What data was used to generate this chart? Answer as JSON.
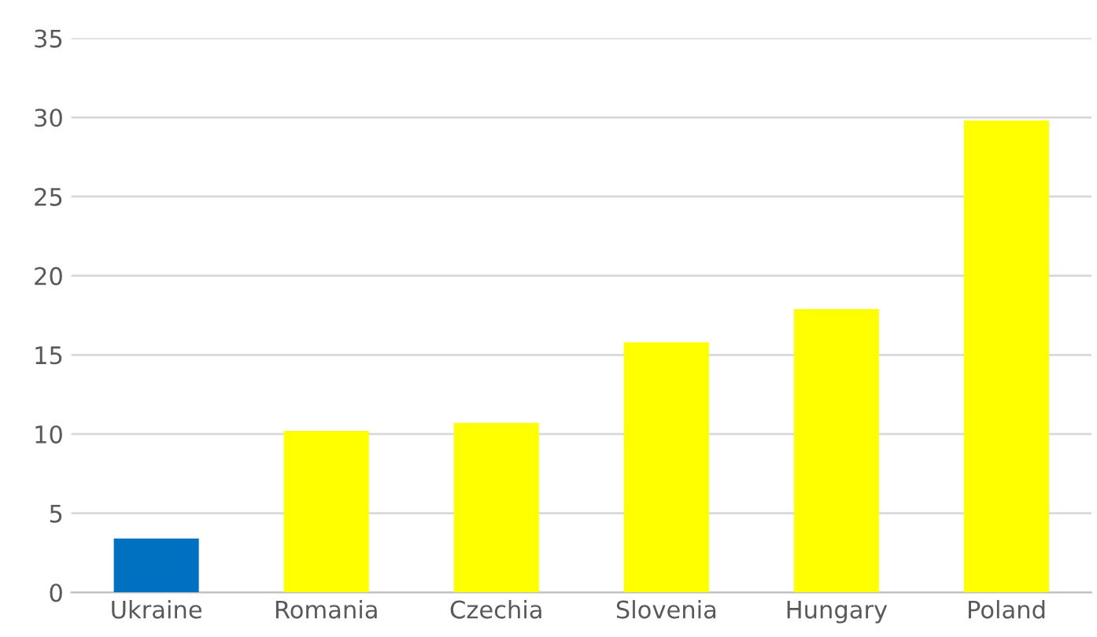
{
  "chart_data": {
    "type": "bar",
    "categories": [
      "Ukraine",
      "Romania",
      "Czechia",
      "Slovenia",
      "Hungary",
      "Poland"
    ],
    "values": [
      3.4,
      10.2,
      10.7,
      15.8,
      17.9,
      29.8
    ],
    "colors": [
      "#0070c0",
      "#ffff00",
      "#ffff00",
      "#ffff00",
      "#ffff00",
      "#ffff00"
    ],
    "ylim": [
      0,
      35
    ],
    "yticks": [
      0,
      5,
      10,
      15,
      20,
      25,
      30,
      35
    ],
    "grid": "y",
    "legend": false
  }
}
